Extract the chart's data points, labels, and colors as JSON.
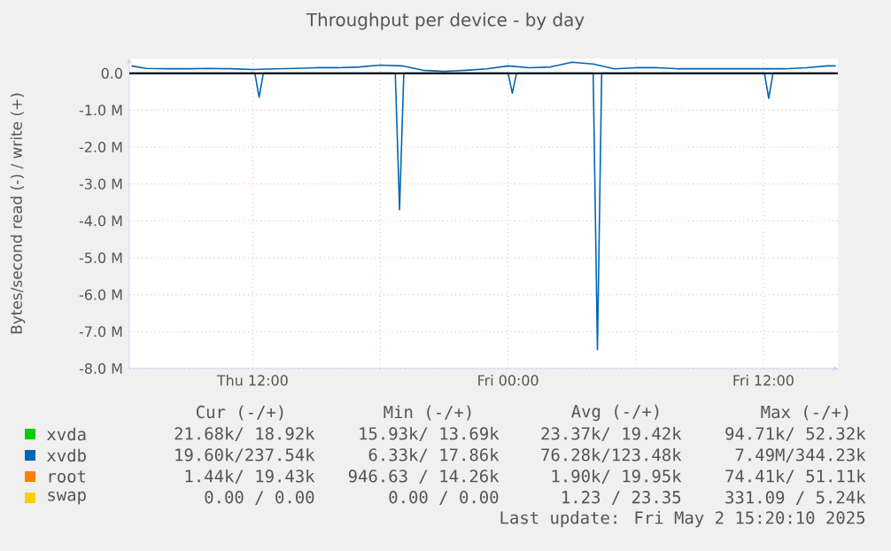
{
  "chart_data": {
    "type": "line",
    "title": "Throughput per device - by day",
    "ylabel": "Bytes/second read (-) / write (+)",
    "xlim": [
      "2025-05-01T06:12",
      "2025-05-02T15:30"
    ],
    "xticks": [
      {
        "value": "2025-05-01T12:00",
        "label": "Thu 12:00"
      },
      {
        "value": "2025-05-01T18:00",
        "label": null
      },
      {
        "value": "2025-05-02T00:00",
        "label": "Fri 00:00"
      },
      {
        "value": "2025-05-02T06:00",
        "label": null
      },
      {
        "value": "2025-05-02T12:00",
        "label": "Fri 12:00"
      }
    ],
    "ylim": [
      -8,
      0.4
    ],
    "yticks": [
      {
        "value": -8,
        "label": "-8.0 M"
      },
      {
        "value": -7,
        "label": "-7.0 M"
      },
      {
        "value": -6,
        "label": "-6.0 M"
      },
      {
        "value": -5,
        "label": "-5.0 M"
      },
      {
        "value": -4,
        "label": "-4.0 M"
      },
      {
        "value": -3,
        "label": "-3.0 M"
      },
      {
        "value": -2,
        "label": "-2.0 M"
      },
      {
        "value": -1,
        "label": "-1.0 M"
      },
      {
        "value": 0,
        "label": "0.0"
      }
    ],
    "grid": true,
    "legend": "bottom",
    "series": [
      {
        "name": "xvda",
        "color": "#00cc00",
        "values": [
          null
        ]
      },
      {
        "color": "#0066b3",
        "x": [
          "2025-05-01T06:18",
          "2025-05-01T12:06",
          "2025-05-01T12:18",
          "2025-05-01T12:30",
          "2025-05-01T18:42",
          "2025-05-01T18:54",
          "2025-05-01T19:06",
          "2025-05-02T00:00",
          "2025-05-02T00:12",
          "2025-05-02T00:24",
          "2025-05-02T04:00",
          "2025-05-02T04:12",
          "2025-05-02T04:24",
          "2025-05-02T12:03",
          "2025-05-02T12:15",
          "2025-05-02T12:27",
          "2025-05-02T15:24"
        ],
        "values": [
          0,
          0,
          -0.65,
          0,
          0,
          -3.7,
          0,
          0,
          -0.54,
          0,
          0,
          -7.49,
          0,
          0,
          -0.68,
          0,
          0
        ]
      },
      {
        "name": "xvdb",
        "color": "#0066b3",
        "x": [
          "2025-05-01T06:18",
          "2025-05-01T07:00",
          "2025-05-01T08:00",
          "2025-05-01T09:00",
          "2025-05-01T10:00",
          "2025-05-01T11:00",
          "2025-05-01T12:00",
          "2025-05-01T13:00",
          "2025-05-01T14:00",
          "2025-05-01T15:00",
          "2025-05-01T16:00",
          "2025-05-01T17:00",
          "2025-05-01T18:00",
          "2025-05-01T19:00",
          "2025-05-01T20:00",
          "2025-05-01T21:00",
          "2025-05-01T22:00",
          "2025-05-01T23:00",
          "2025-05-02T00:00",
          "2025-05-02T01:00",
          "2025-05-02T02:00",
          "2025-05-02T03:00",
          "2025-05-02T04:00",
          "2025-05-02T05:00",
          "2025-05-02T06:00",
          "2025-05-02T07:00",
          "2025-05-02T08:00",
          "2025-05-02T09:00",
          "2025-05-02T10:00",
          "2025-05-02T11:00",
          "2025-05-02T12:00",
          "2025-05-02T13:00",
          "2025-05-02T14:00",
          "2025-05-02T15:00",
          "2025-05-02T15:24"
        ],
        "values": [
          0.2,
          0.13,
          0.12,
          0.12,
          0.13,
          0.12,
          0.1,
          0.12,
          0.13,
          0.15,
          0.15,
          0.17,
          0.22,
          0.2,
          0.08,
          0.05,
          0.08,
          0.12,
          0.2,
          0.15,
          0.17,
          0.3,
          0.25,
          0.12,
          0.15,
          0.15,
          0.12,
          0.12,
          0.12,
          0.12,
          0.12,
          0.12,
          0.15,
          0.2,
          0.2
        ]
      },
      {
        "name": "root",
        "color": "#ff8000",
        "values": [
          null
        ]
      },
      {
        "name": "swap",
        "color": "#ffcc00",
        "values": [
          null
        ]
      }
    ],
    "ref_lines": [
      {
        "axis": "y",
        "value": 0,
        "color": "#000000"
      }
    ],
    "annotations": [
      "Cur (-/+)",
      "Min (-/+)",
      "Avg (-/+)",
      "Max (-/+)",
      "21.68k/ 18.92k",
      "15.93k/ 13.69k",
      "23.37k/ 19.42k",
      "94.71k/ 52.32k",
      "19.60k/237.54k",
      "6.33k/ 17.86k",
      "76.28k/123.48k",
      "7.49M/344.23k",
      "1.44k/ 19.43k",
      "946.63 / 14.26k",
      "1.90k/ 19.95k",
      "74.41k/ 51.11k",
      "0.00 / 0.00",
      "0.00 / 0.00",
      "1.23 / 23.35",
      "331.09 / 5.24k",
      "Last update: Fri May 2 15:20:10 2025"
    ]
  }
}
